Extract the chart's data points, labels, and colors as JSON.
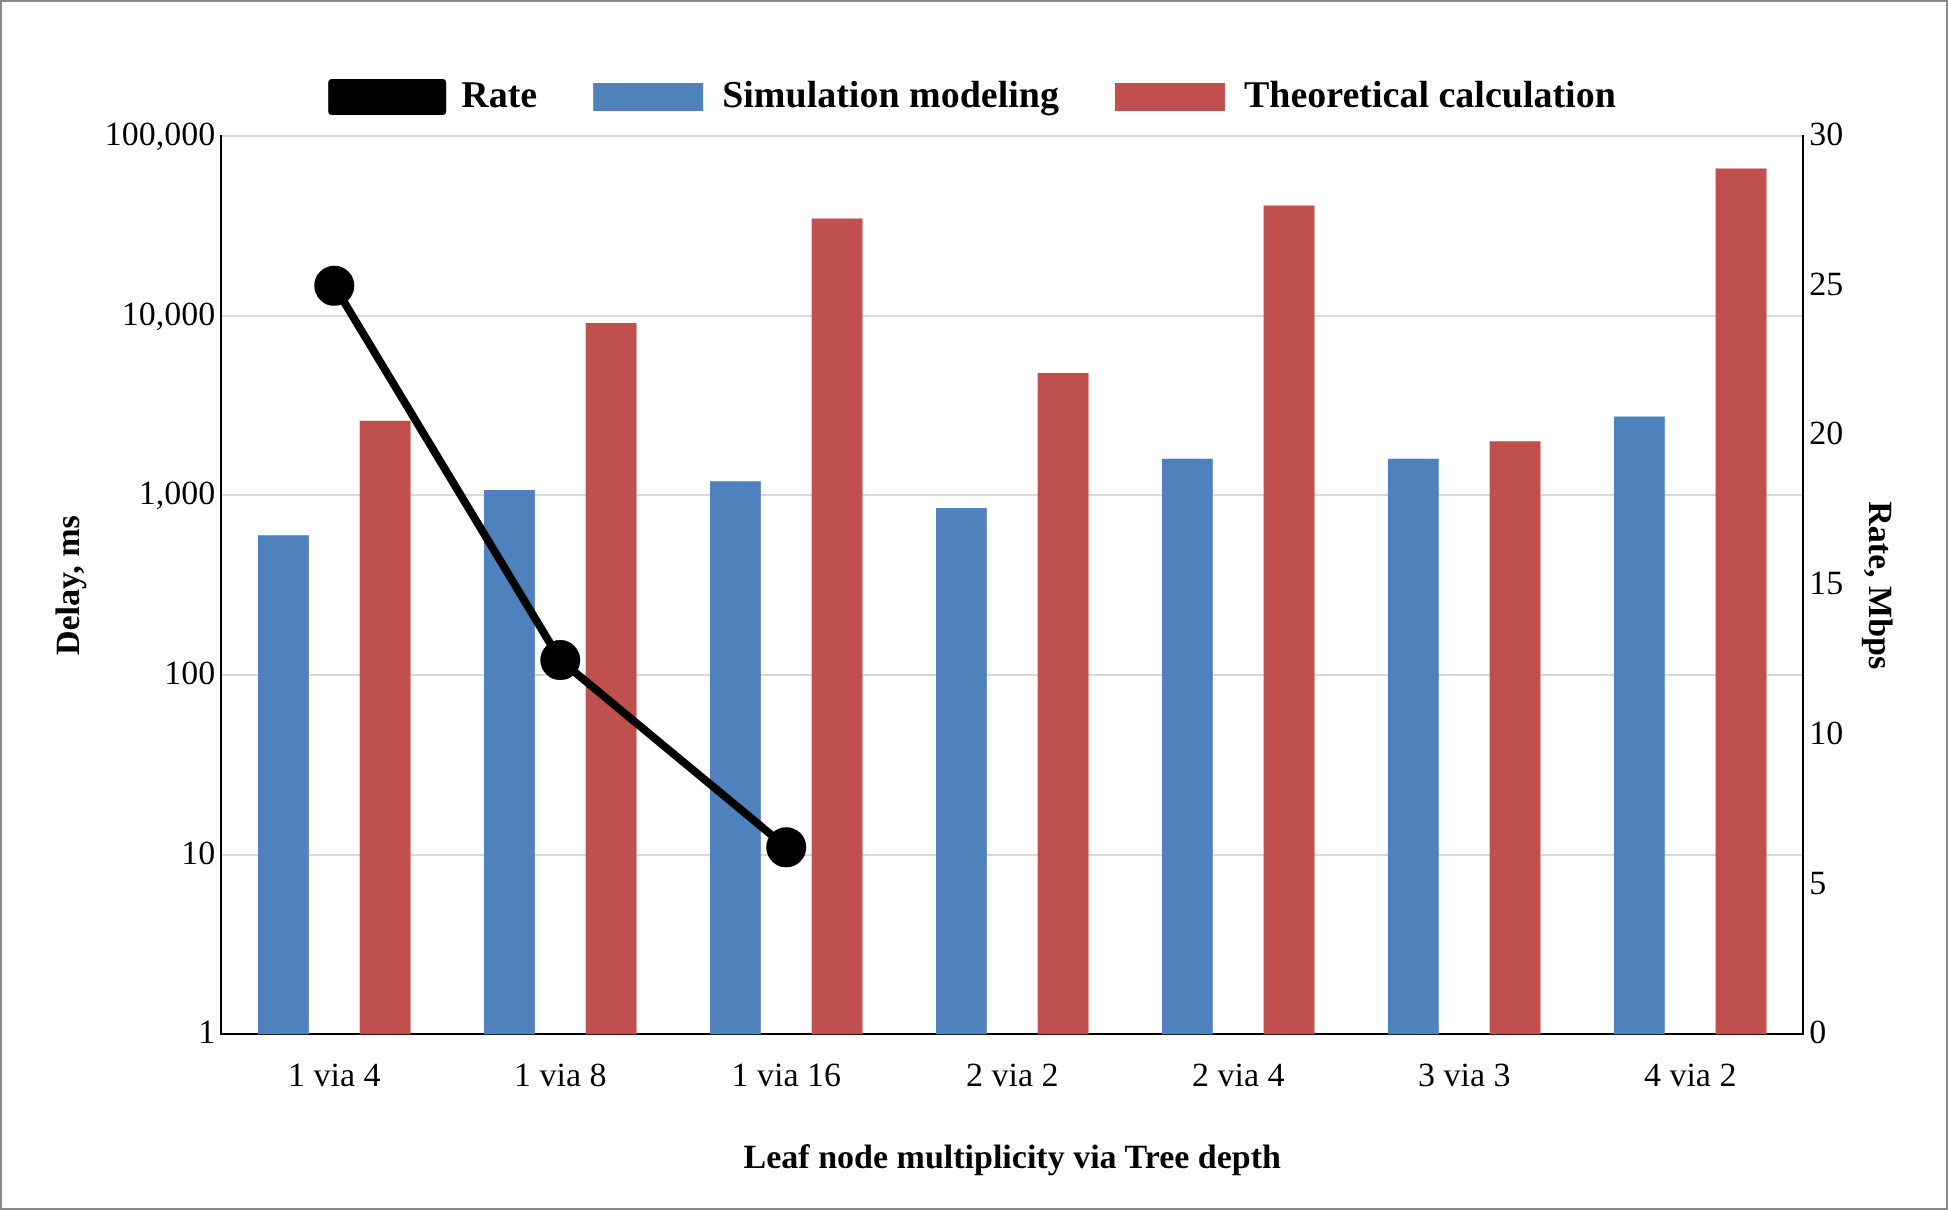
{
  "chart_data": {
    "type": "bar",
    "xlabel": "Leaf node multiplicity via Tree depth",
    "ylabel": "Delay, ms",
    "y2label": "Rate, Mbps",
    "categories": [
      "1 via 4",
      "1 via 8",
      "1 via 16",
      "2 via 2",
      "2 via 4",
      "3 via 3",
      "4 via 2"
    ],
    "series": [
      {
        "name": "Simulation modeling",
        "color": "#4f81bd",
        "values": [
          600,
          1070,
          1200,
          850,
          1600,
          1600,
          2750
        ]
      },
      {
        "name": "Theoretical calculation",
        "color": "#c0504d",
        "values": [
          2600,
          9100,
          34700,
          4800,
          41000,
          2000,
          66000
        ]
      },
      {
        "name": "Rate",
        "type": "line",
        "axis": "y2",
        "color": "#000000",
        "values": [
          25,
          12.5,
          6.25,
          null,
          null,
          null,
          null
        ]
      }
    ],
    "log": "y",
    "ylim": [
      1,
      100000
    ],
    "yticks": [
      {
        "value": 1,
        "label": "1"
      },
      {
        "value": 10,
        "label": "10"
      },
      {
        "value": 100,
        "label": "100"
      },
      {
        "value": 1000,
        "label": "1,000"
      },
      {
        "value": 10000,
        "label": "10,000"
      },
      {
        "value": 100000,
        "label": "100,000"
      }
    ],
    "y2lim": [
      0,
      30
    ],
    "y2ticks": [
      0,
      5,
      10,
      15,
      20,
      25,
      30
    ],
    "grid": "y",
    "legend": "top",
    "marker": "circle",
    "line_style": "solid"
  }
}
